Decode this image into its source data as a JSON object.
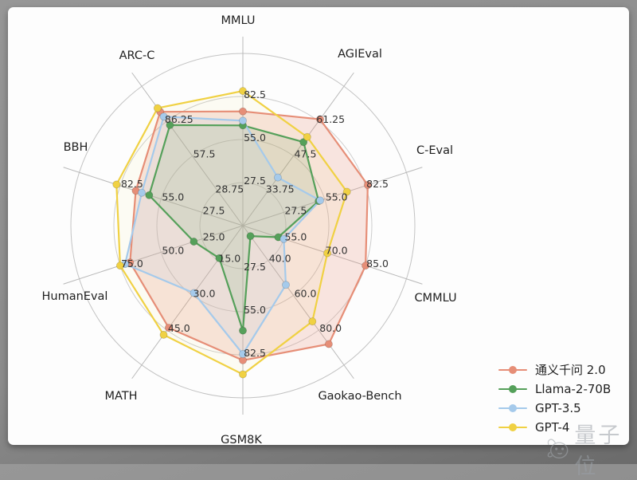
{
  "frame": {
    "background": "#8b8b8b",
    "card_color": "#fdfdfd"
  },
  "watermark": {
    "text": "量子位",
    "icon": "qbitai-mascot-icon",
    "color": "#9aa0a6"
  },
  "legend": {
    "position": "lower right",
    "items": [
      "通义千问 2.0",
      "Llama-2-70B",
      "GPT-3.5",
      "GPT-4"
    ]
  },
  "chart_data": {
    "type": "radar",
    "grid": true,
    "grid_rings": 4,
    "axes": [
      {
        "label": "MMLU",
        "min": 0,
        "ring_step": 27.5,
        "ticks": [
          "27.5",
          "55.0",
          "82.5"
        ]
      },
      {
        "label": "AGIEval",
        "min": 20,
        "ring_step": 13.75,
        "ticks": [
          "33.75",
          "47.5",
          "61.25"
        ]
      },
      {
        "label": "C-Eval",
        "min": 0,
        "ring_step": 27.5,
        "ticks": [
          "27.5",
          "55.0",
          "82.5"
        ]
      },
      {
        "label": "CMMLU",
        "min": 40,
        "ring_step": 15,
        "ticks": [
          "55.0",
          "70.0",
          "85.0"
        ]
      },
      {
        "label": "Gaokao-Bench",
        "min": 20,
        "ring_step": 20,
        "ticks": [
          "40.0",
          "60.0",
          "80.0"
        ]
      },
      {
        "label": "GSM8K",
        "min": 0,
        "ring_step": 27.5,
        "ticks": [
          "27.5",
          "55.0",
          "82.5"
        ]
      },
      {
        "label": "MATH",
        "min": 0,
        "ring_step": 15,
        "ticks": [
          "15.0",
          "30.0",
          "45.0"
        ]
      },
      {
        "label": "HumanEval",
        "min": 0,
        "ring_step": 25,
        "ticks": [
          "25.0",
          "50.0",
          "75.0"
        ]
      },
      {
        "label": "BBH",
        "min": 0,
        "ring_step": 27.5,
        "ticks": [
          "27.5",
          "55.0",
          "82.5"
        ]
      },
      {
        "label": "ARC-C",
        "min": 0,
        "ring_step": 28.75,
        "ticks": [
          "28.75",
          "57.5",
          "86.25"
        ]
      }
    ],
    "series": [
      {
        "name": "通义千问 2.0",
        "color": "#E68E77",
        "fill_alpha": 0.22,
        "values": [
          73,
          62,
          84,
          85,
          88,
          86,
          44,
          69,
          72,
          94
        ]
      },
      {
        "name": "Llama-2-70B",
        "color": "#55A05A",
        "fill_alpha": 0.14,
        "values": [
          64,
          53,
          51,
          53,
          26,
          67,
          14,
          30,
          63,
          83
        ]
      },
      {
        "name": "GPT-3.5",
        "color": "#A5CAEB",
        "fill_alpha": 0.16,
        "values": [
          67,
          39,
          52,
          55,
          54,
          82,
          29,
          72,
          68,
          90
        ]
      },
      {
        "name": "GPT-4",
        "color": "#F0D143",
        "fill_alpha": 0.05,
        "values": [
          86,
          55,
          70,
          71,
          75,
          95,
          47,
          75,
          85,
          97
        ]
      }
    ]
  }
}
